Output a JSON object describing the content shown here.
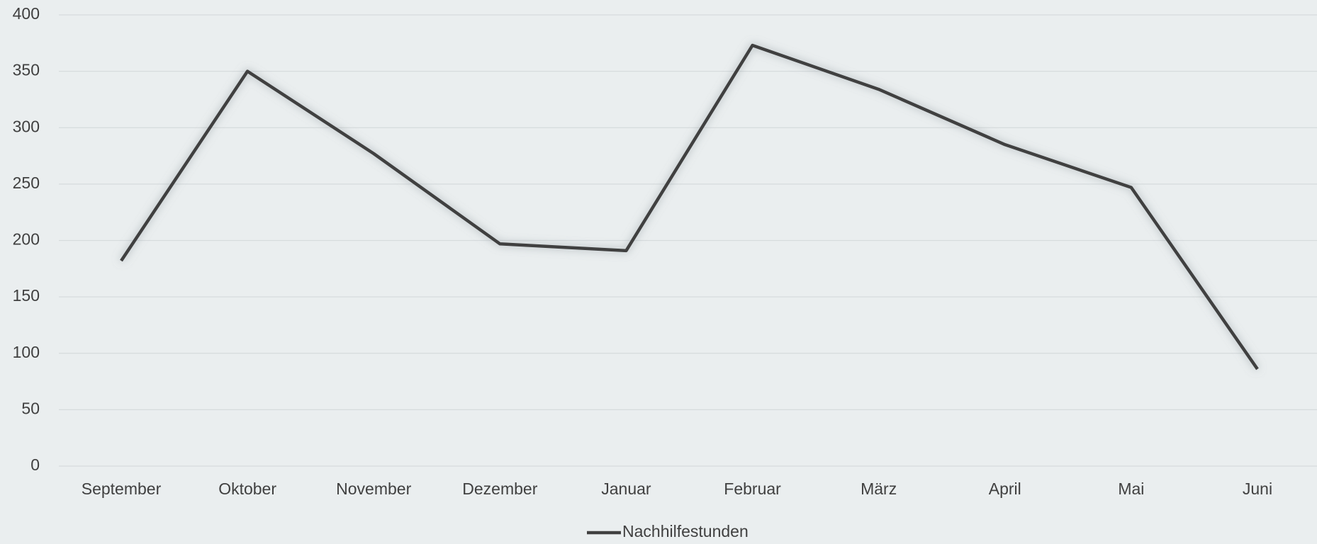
{
  "chart_data": {
    "type": "line",
    "categories": [
      "September",
      "Oktober",
      "November",
      "Dezember",
      "Januar",
      "Februar",
      "März",
      "April",
      "Mai",
      "Juni"
    ],
    "series": [
      {
        "name": "Nachhilfestunden",
        "color": "#404040",
        "values": [
          182,
          350,
          277,
          197,
          191,
          373,
          334,
          285,
          247,
          86
        ]
      }
    ],
    "ylim": [
      0,
      400
    ],
    "yticks": [
      0,
      50,
      100,
      150,
      200,
      250,
      300,
      350,
      400
    ],
    "grid": true,
    "legend": "bottom"
  }
}
